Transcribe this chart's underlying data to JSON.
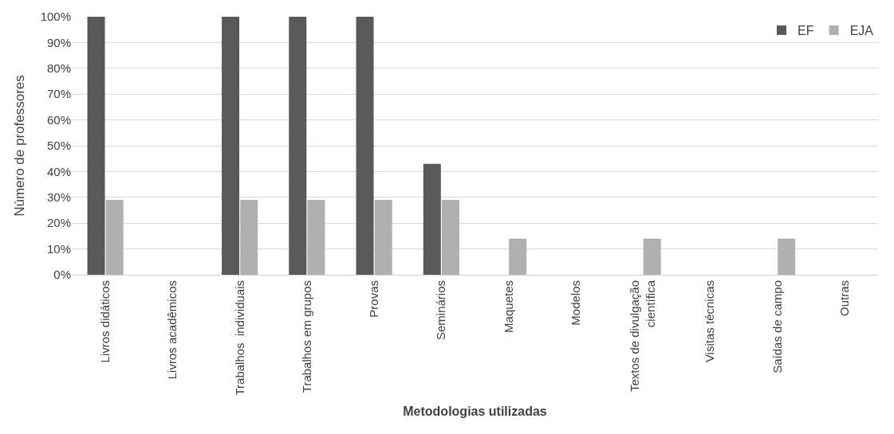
{
  "chart_data": {
    "type": "bar",
    "xlabel": "Metodologias utilizadas",
    "ylabel": "Número de professores",
    "categories": [
      "Livros didáticos",
      "Livros acadêmicos",
      "Trabalhos  individuais",
      "Trabalhos em grupos",
      "Provas",
      "Seminários",
      "Maquetes",
      "Modelos",
      "Textos de divulgação científica",
      "Visitas técnicas",
      "Saídas de campo",
      "Outras"
    ],
    "series": [
      {
        "name": "EF",
        "color": "#595959",
        "values": [
          100,
          0,
          100,
          100,
          100,
          43,
          0,
          0,
          0,
          0,
          0,
          0
        ]
      },
      {
        "name": "EJA",
        "color": "#b0b0b0",
        "values": [
          29,
          0,
          29,
          29,
          29,
          29,
          14,
          0,
          14,
          0,
          14,
          0
        ]
      }
    ],
    "ylim": [
      0,
      100
    ],
    "yticks": [
      {
        "value": 0,
        "label": "0%"
      },
      {
        "value": 10,
        "label": "10%"
      },
      {
        "value": 20,
        "label": "20%"
      },
      {
        "value": 30,
        "label": "30%"
      },
      {
        "value": 40,
        "label": "40%"
      },
      {
        "value": 50,
        "label": "50%"
      },
      {
        "value": 60,
        "label": "60%"
      },
      {
        "value": 70,
        "label": "70%"
      },
      {
        "value": 80,
        "label": "80%"
      },
      {
        "value": 90,
        "label": "90%"
      },
      {
        "value": 100,
        "label": "100%"
      }
    ],
    "grid": "y",
    "legend": "top right"
  }
}
